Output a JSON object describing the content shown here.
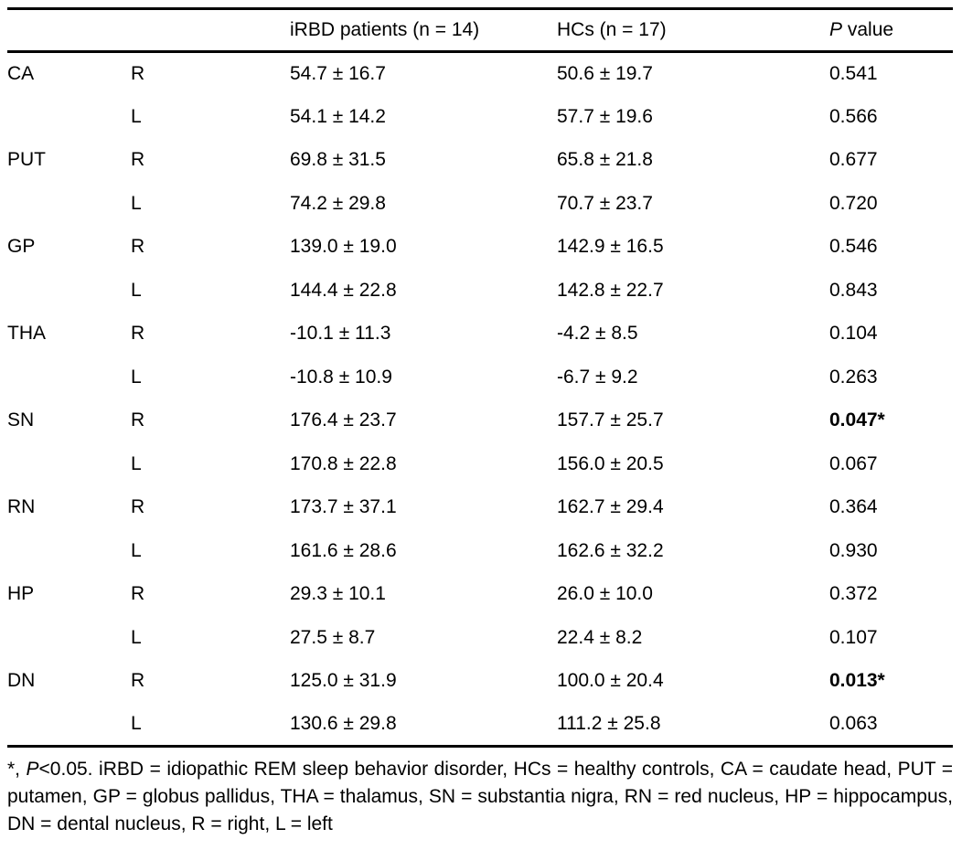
{
  "table": {
    "header": {
      "region_label": "",
      "side_label": "",
      "col_irbd": "iRBD patients (n = 14)",
      "col_hcs": "HCs (n = 17)",
      "p_italic": "P",
      "p_rest": " value"
    },
    "rows": [
      {
        "region": "CA",
        "side": "R",
        "irbd": "54.7 ± 16.7",
        "hcs": "50.6 ± 19.7",
        "p": "0.541",
        "bold": false
      },
      {
        "region": "",
        "side": "L",
        "irbd": "54.1 ± 14.2",
        "hcs": "57.7 ± 19.6",
        "p": "0.566",
        "bold": false
      },
      {
        "region": "PUT",
        "side": "R",
        "irbd": "69.8 ± 31.5",
        "hcs": "65.8 ± 21.8",
        "p": "0.677",
        "bold": false
      },
      {
        "region": "",
        "side": "L",
        "irbd": "74.2 ± 29.8",
        "hcs": "70.7 ± 23.7",
        "p": "0.720",
        "bold": false
      },
      {
        "region": "GP",
        "side": "R",
        "irbd": "139.0 ± 19.0",
        "hcs": "142.9 ± 16.5",
        "p": "0.546",
        "bold": false
      },
      {
        "region": "",
        "side": "L",
        "irbd": "144.4 ± 22.8",
        "hcs": "142.8 ± 22.7",
        "p": "0.843",
        "bold": false
      },
      {
        "region": "THA",
        "side": "R",
        "irbd": "-10.1 ± 11.3",
        "hcs": "-4.2 ± 8.5",
        "p": "0.104",
        "bold": false
      },
      {
        "region": "",
        "side": "L",
        "irbd": "-10.8 ± 10.9",
        "hcs": "-6.7 ± 9.2",
        "p": "0.263",
        "bold": false
      },
      {
        "region": "SN",
        "side": "R",
        "irbd": "176.4 ± 23.7",
        "hcs": "157.7 ± 25.7",
        "p": "0.047*",
        "bold": true
      },
      {
        "region": "",
        "side": "L",
        "irbd": "170.8 ± 22.8",
        "hcs": "156.0 ± 20.5",
        "p": "0.067",
        "bold": false
      },
      {
        "region": "RN",
        "side": "R",
        "irbd": "173.7 ± 37.1",
        "hcs": "162.7 ± 29.4",
        "p": "0.364",
        "bold": false
      },
      {
        "region": "",
        "side": "L",
        "irbd": "161.6 ± 28.6",
        "hcs": "162.6 ± 32.2",
        "p": "0.930",
        "bold": false
      },
      {
        "region": "HP",
        "side": "R",
        "irbd": "29.3 ± 10.1",
        "hcs": "26.0 ± 10.0",
        "p": "0.372",
        "bold": false
      },
      {
        "region": "",
        "side": "L",
        "irbd": "27.5 ± 8.7",
        "hcs": "22.4 ± 8.2",
        "p": "0.107",
        "bold": false
      },
      {
        "region": "DN",
        "side": "R",
        "irbd": "125.0 ± 31.9",
        "hcs": "100.0 ± 20.4",
        "p": "0.013*",
        "bold": true
      },
      {
        "region": "",
        "side": "L",
        "irbd": "130.6 ± 29.8",
        "hcs": "111.2 ± 25.8",
        "p": "0.063",
        "bold": false
      }
    ]
  },
  "footnote": {
    "prefix": "*, ",
    "p_italic": "P",
    "rest": "<0.05. iRBD = idiopathic REM sleep behavior disorder, HCs = healthy controls, CA = caudate head, PUT = putamen, GP = globus pallidus, THA = thalamus, SN = substantia nigra, RN = red nucleus, HP = hippocampus, DN = dental nucleus, R = right, L = left"
  },
  "colors": {
    "text": "#000000",
    "rule": "#000000",
    "background": "#ffffff"
  }
}
